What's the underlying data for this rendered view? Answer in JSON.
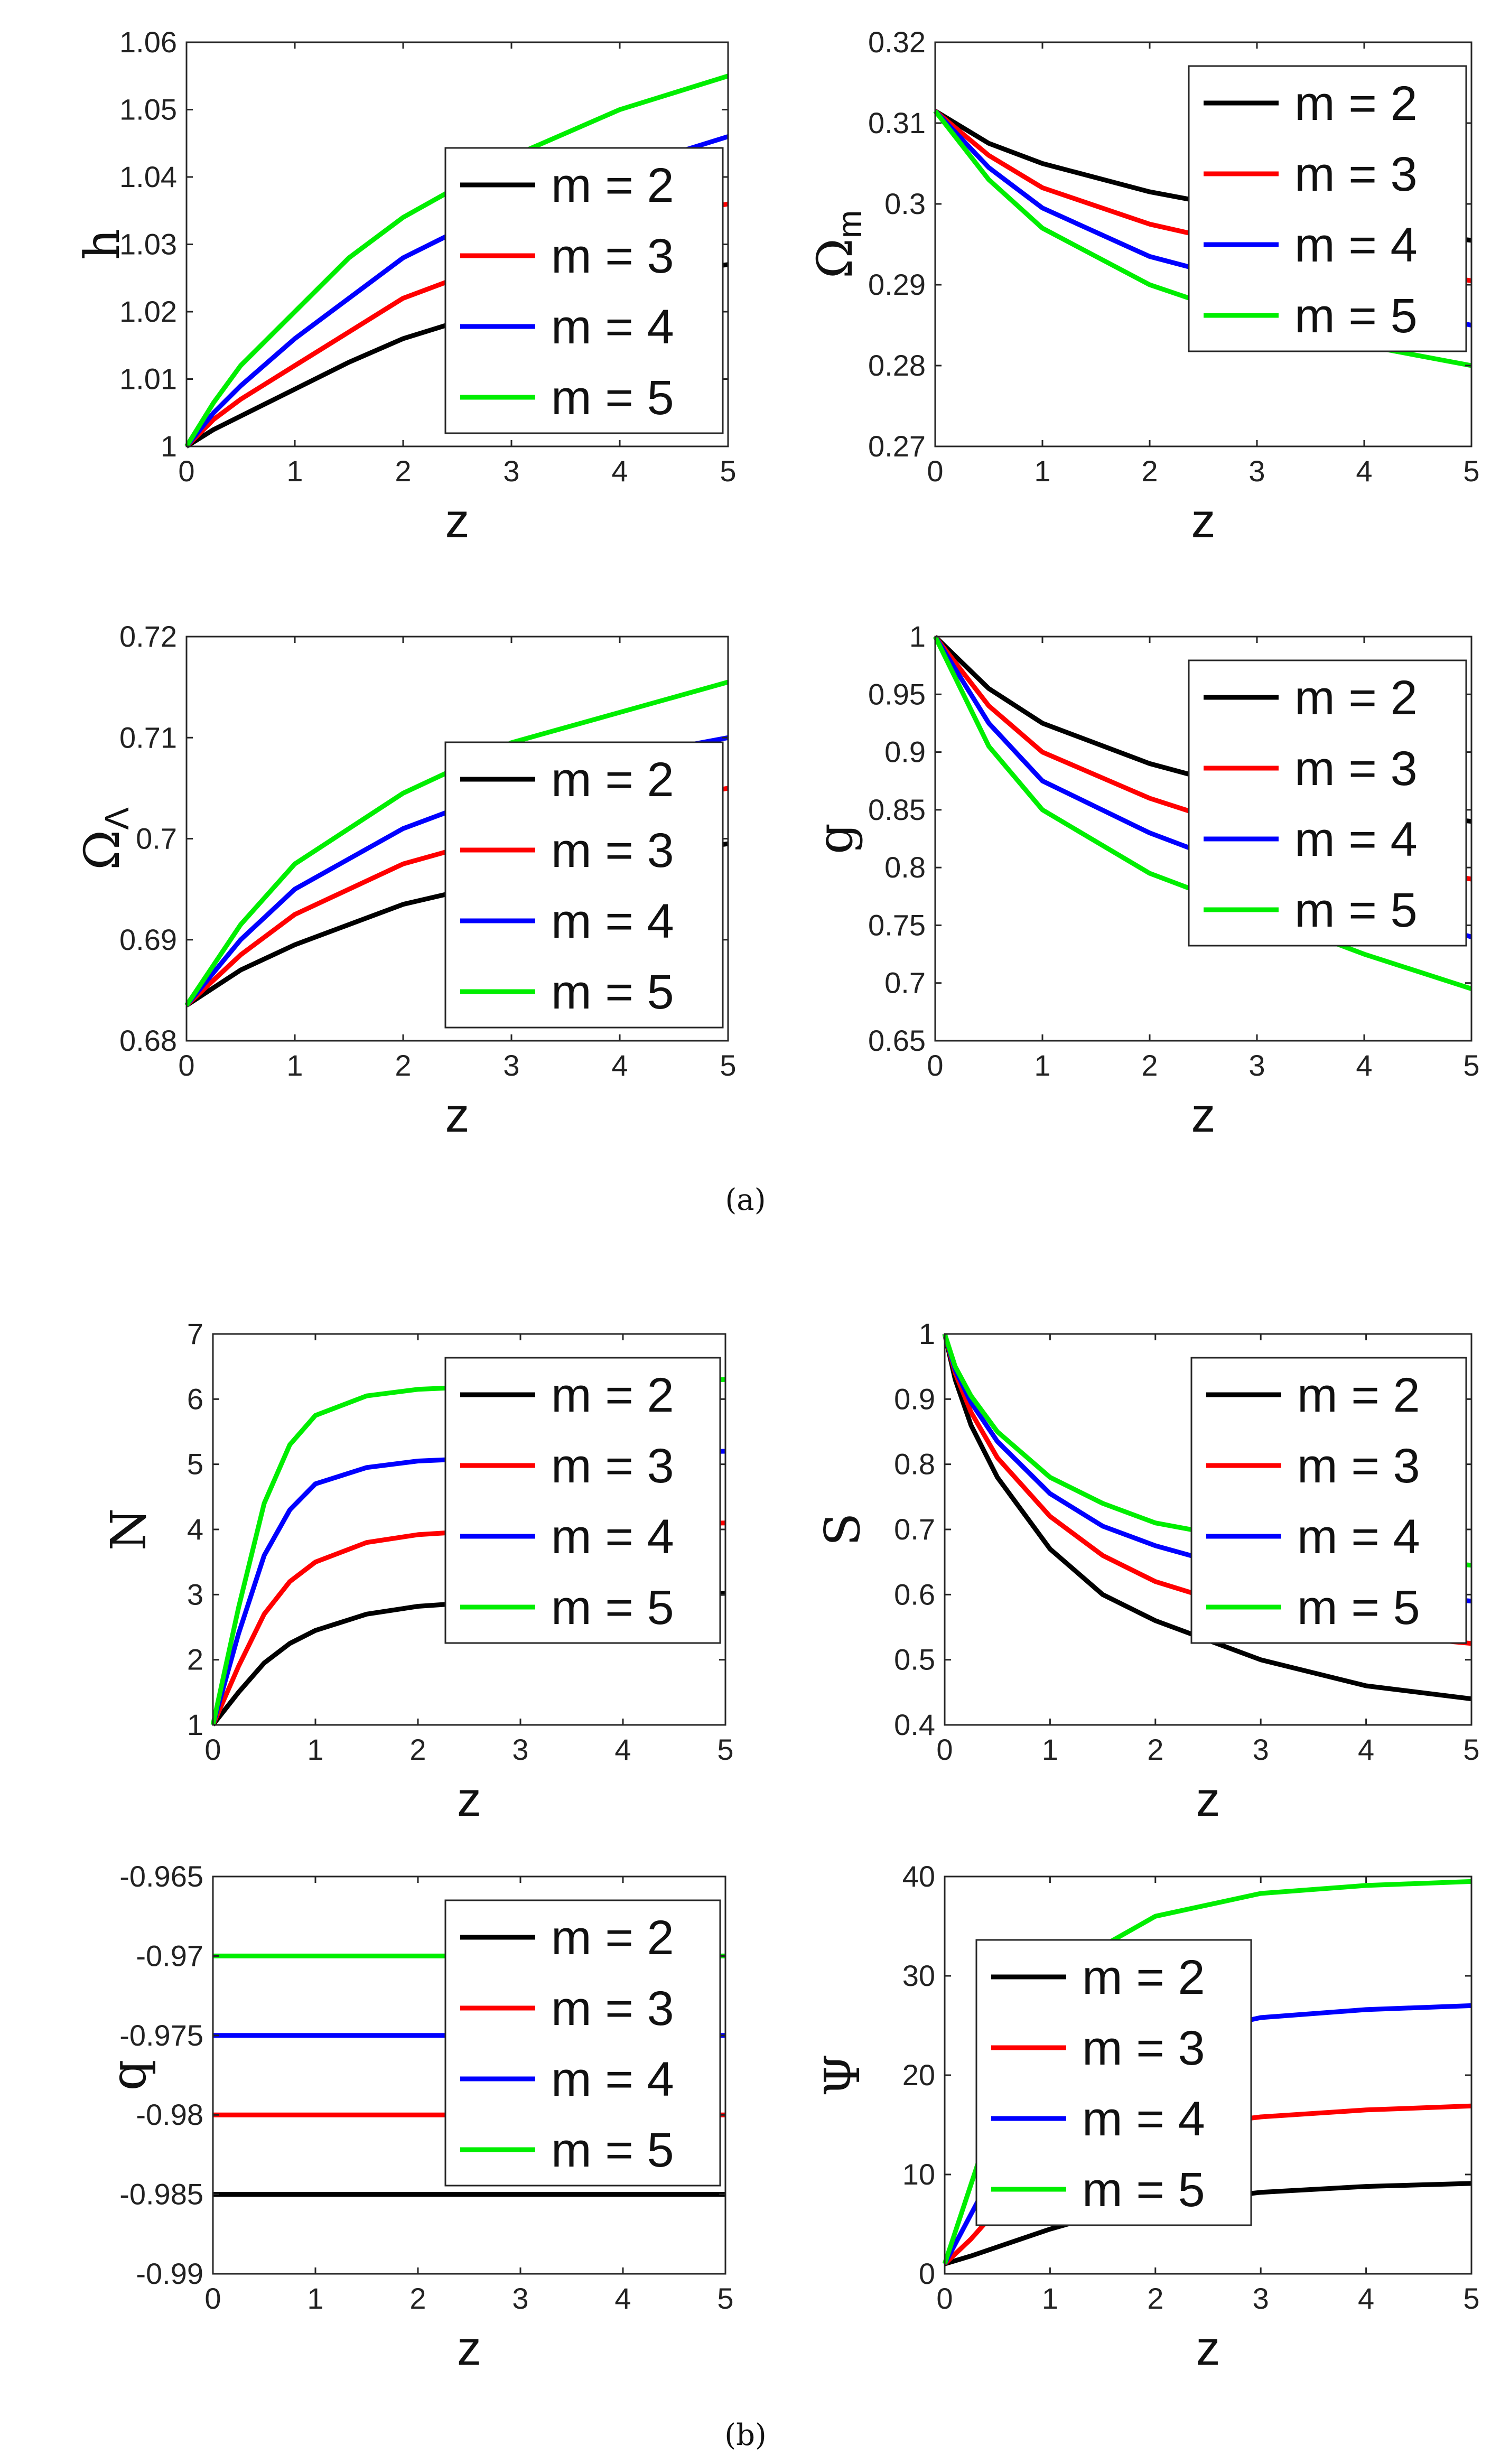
{
  "figure": {
    "captions": [
      "(a)",
      "(b)"
    ]
  },
  "chart_data": [
    {
      "id": "h",
      "type": "line",
      "ylabel": "h",
      "xlabel": "z",
      "xlim": [
        0,
        5
      ],
      "ylim": [
        1,
        1.06
      ],
      "xticks": [
        "0",
        "1",
        "2",
        "3",
        "4",
        "5"
      ],
      "yticks": [
        "1",
        "1.01",
        "1.02",
        "1.03",
        "1.04",
        "1.05",
        "1.06"
      ],
      "legend": "upper-right",
      "series": [
        {
          "name": "m = 2",
          "color": "#000000",
          "x": [
            0,
            0.25,
            0.5,
            1,
            1.5,
            2,
            3,
            4,
            5
          ],
          "y": [
            1,
            1.0025,
            1.0045,
            1.0085,
            1.0125,
            1.016,
            1.021,
            1.025,
            1.027
          ]
        },
        {
          "name": "m = 3",
          "color": "#ff0000",
          "x": [
            0,
            0.25,
            0.5,
            1,
            1.5,
            2,
            3,
            4,
            5
          ],
          "y": [
            1,
            1.004,
            1.007,
            1.012,
            1.017,
            1.022,
            1.028,
            1.033,
            1.036
          ]
        },
        {
          "name": "m = 4",
          "color": "#0000ff",
          "x": [
            0,
            0.25,
            0.5,
            1,
            1.5,
            2,
            3,
            4,
            5
          ],
          "y": [
            1,
            1.005,
            1.009,
            1.016,
            1.022,
            1.028,
            1.036,
            1.041,
            1.046
          ]
        },
        {
          "name": "m = 5",
          "color": "#00ee00",
          "x": [
            0,
            0.25,
            0.5,
            1,
            1.5,
            2,
            3,
            4,
            5
          ],
          "y": [
            1,
            1.0065,
            1.012,
            1.02,
            1.028,
            1.034,
            1.043,
            1.05,
            1.055
          ]
        }
      ]
    },
    {
      "id": "omega_m",
      "type": "line",
      "ylabel": "Ωm",
      "xlabel": "z",
      "xlim": [
        0,
        5
      ],
      "ylim": [
        0.27,
        0.32
      ],
      "xticks": [
        "0",
        "1",
        "2",
        "3",
        "4",
        "5"
      ],
      "yticks": [
        "0.27",
        "0.28",
        "0.29",
        "0.3",
        "0.31",
        "0.32"
      ],
      "legend": "upper-right",
      "series": [
        {
          "name": "m = 2",
          "color": "#000000",
          "x": [
            0,
            0.5,
            1,
            2,
            3,
            4,
            5
          ],
          "y": [
            0.3115,
            0.3075,
            0.305,
            0.3015,
            0.299,
            0.297,
            0.2955
          ]
        },
        {
          "name": "m = 3",
          "color": "#ff0000",
          "x": [
            0,
            0.5,
            1,
            2,
            3,
            4,
            5
          ],
          "y": [
            0.3115,
            0.306,
            0.302,
            0.2975,
            0.2945,
            0.2925,
            0.2905
          ]
        },
        {
          "name": "m = 4",
          "color": "#0000ff",
          "x": [
            0,
            0.5,
            1,
            2,
            3,
            4,
            5
          ],
          "y": [
            0.3115,
            0.3045,
            0.2995,
            0.2935,
            0.29,
            0.2875,
            0.285
          ]
        },
        {
          "name": "m = 5",
          "color": "#00ee00",
          "x": [
            0,
            0.5,
            1,
            2,
            3,
            4,
            5
          ],
          "y": [
            0.3115,
            0.303,
            0.297,
            0.29,
            0.2855,
            0.2825,
            0.28
          ]
        }
      ]
    },
    {
      "id": "omega_lambda",
      "type": "line",
      "ylabel": "ΩΛ",
      "xlabel": "z",
      "xlim": [
        0,
        5
      ],
      "ylim": [
        0.68,
        0.72
      ],
      "xticks": [
        "0",
        "1",
        "2",
        "3",
        "4",
        "5"
      ],
      "yticks": [
        "0.68",
        "0.69",
        "0.7",
        "0.71",
        "0.72"
      ],
      "legend": "upper-right",
      "series": [
        {
          "name": "m = 2",
          "color": "#000000",
          "x": [
            0,
            0.5,
            1,
            2,
            3,
            4,
            5
          ],
          "y": [
            0.6835,
            0.687,
            0.6895,
            0.6935,
            0.696,
            0.698,
            0.6995
          ]
        },
        {
          "name": "m = 3",
          "color": "#ff0000",
          "x": [
            0,
            0.5,
            1,
            2,
            3,
            4,
            5
          ],
          "y": [
            0.6835,
            0.6885,
            0.6925,
            0.6975,
            0.7005,
            0.703,
            0.705
          ]
        },
        {
          "name": "m = 4",
          "color": "#0000ff",
          "x": [
            0,
            0.5,
            1,
            2,
            3,
            4,
            5
          ],
          "y": [
            0.6835,
            0.69,
            0.695,
            0.701,
            0.705,
            0.708,
            0.71
          ]
        },
        {
          "name": "m = 5",
          "color": "#00ee00",
          "x": [
            0,
            0.5,
            1,
            2,
            3,
            4,
            5
          ],
          "y": [
            0.6835,
            0.6915,
            0.6975,
            0.7045,
            0.7095,
            0.7125,
            0.7155
          ]
        }
      ]
    },
    {
      "id": "g",
      "type": "line",
      "ylabel": "g",
      "xlabel": "z",
      "xlim": [
        0,
        5
      ],
      "ylim": [
        0.65,
        1
      ],
      "xticks": [
        "0",
        "1",
        "2",
        "3",
        "4",
        "5"
      ],
      "yticks": [
        "0.65",
        "0.7",
        "0.75",
        "0.8",
        "0.85",
        "0.9",
        "0.95",
        "1"
      ],
      "legend": "upper-right",
      "series": [
        {
          "name": "m = 2",
          "color": "#000000",
          "x": [
            0,
            0.5,
            1,
            2,
            3,
            4,
            5
          ],
          "y": [
            1,
            0.955,
            0.925,
            0.89,
            0.865,
            0.85,
            0.84
          ]
        },
        {
          "name": "m = 3",
          "color": "#ff0000",
          "x": [
            0,
            0.5,
            1,
            2,
            3,
            4,
            5
          ],
          "y": [
            1,
            0.94,
            0.9,
            0.86,
            0.83,
            0.805,
            0.79
          ]
        },
        {
          "name": "m = 4",
          "color": "#0000ff",
          "x": [
            0,
            0.5,
            1,
            2,
            3,
            4,
            5
          ],
          "y": [
            1,
            0.925,
            0.875,
            0.83,
            0.795,
            0.765,
            0.74
          ]
        },
        {
          "name": "m = 5",
          "color": "#00ee00",
          "x": [
            0,
            0.5,
            1,
            2,
            3,
            4,
            5
          ],
          "y": [
            1,
            0.905,
            0.85,
            0.795,
            0.76,
            0.725,
            0.695
          ]
        }
      ]
    },
    {
      "id": "N",
      "type": "line",
      "ylabel": "N",
      "xlabel": "z",
      "xlim": [
        0,
        5
      ],
      "ylim": [
        1,
        7
      ],
      "xticks": [
        "0",
        "1",
        "2",
        "3",
        "4",
        "5"
      ],
      "yticks": [
        "1",
        "2",
        "3",
        "4",
        "5",
        "6",
        "7"
      ],
      "legend": "upper-right",
      "series": [
        {
          "name": "m = 2",
          "color": "#000000",
          "x": [
            0,
            0.25,
            0.5,
            0.75,
            1,
            1.5,
            2,
            3,
            4,
            5
          ],
          "y": [
            1,
            1.5,
            1.95,
            2.25,
            2.45,
            2.7,
            2.82,
            2.93,
            2.98,
            3.02
          ]
        },
        {
          "name": "m = 3",
          "color": "#ff0000",
          "x": [
            0,
            0.25,
            0.5,
            0.75,
            1,
            1.5,
            2,
            3,
            4,
            5
          ],
          "y": [
            1,
            1.9,
            2.7,
            3.2,
            3.5,
            3.8,
            3.92,
            4.02,
            4.07,
            4.1
          ]
        },
        {
          "name": "m = 4",
          "color": "#0000ff",
          "x": [
            0,
            0.25,
            0.5,
            0.75,
            1,
            1.5,
            2,
            3,
            4,
            5
          ],
          "y": [
            1,
            2.4,
            3.6,
            4.3,
            4.7,
            4.95,
            5.05,
            5.12,
            5.17,
            5.2
          ]
        },
        {
          "name": "m = 5",
          "color": "#00ee00",
          "x": [
            0,
            0.25,
            0.5,
            0.75,
            1,
            1.5,
            2,
            3,
            4,
            5
          ],
          "y": [
            1,
            2.8,
            4.4,
            5.3,
            5.75,
            6.05,
            6.15,
            6.22,
            6.26,
            6.3
          ]
        }
      ]
    },
    {
      "id": "S",
      "type": "line",
      "ylabel": "S",
      "xlabel": "z",
      "xlim": [
        0,
        5
      ],
      "ylim": [
        0.4,
        1
      ],
      "xticks": [
        "0",
        "1",
        "2",
        "3",
        "4",
        "5"
      ],
      "yticks": [
        "0.4",
        "0.5",
        "0.6",
        "0.7",
        "0.8",
        "0.9",
        "1"
      ],
      "legend": "upper-right",
      "series": [
        {
          "name": "m = 2",
          "color": "#000000",
          "x": [
            0,
            0.1,
            0.25,
            0.5,
            1,
            1.5,
            2,
            3,
            4,
            5
          ],
          "y": [
            1,
            0.93,
            0.86,
            0.78,
            0.67,
            0.6,
            0.56,
            0.5,
            0.46,
            0.44
          ]
        },
        {
          "name": "m = 3",
          "color": "#ff0000",
          "x": [
            0,
            0.1,
            0.25,
            0.5,
            1,
            1.5,
            2,
            3,
            4,
            5
          ],
          "y": [
            1,
            0.94,
            0.88,
            0.81,
            0.72,
            0.66,
            0.62,
            0.57,
            0.54,
            0.525
          ]
        },
        {
          "name": "m = 4",
          "color": "#0000ff",
          "x": [
            0,
            0.1,
            0.25,
            0.5,
            1,
            1.5,
            2,
            3,
            4,
            5
          ],
          "y": [
            1,
            0.945,
            0.895,
            0.835,
            0.755,
            0.705,
            0.675,
            0.63,
            0.605,
            0.59
          ]
        },
        {
          "name": "m = 5",
          "color": "#00ee00",
          "x": [
            0,
            0.1,
            0.25,
            0.5,
            1,
            1.5,
            2,
            3,
            4,
            5
          ],
          "y": [
            1,
            0.95,
            0.905,
            0.85,
            0.78,
            0.74,
            0.71,
            0.68,
            0.66,
            0.645
          ]
        }
      ]
    },
    {
      "id": "q",
      "type": "line",
      "ylabel": "q",
      "xlabel": "z",
      "xlim": [
        0,
        5
      ],
      "ylim": [
        -0.99,
        -0.965
      ],
      "xticks": [
        "0",
        "1",
        "2",
        "3",
        "4",
        "5"
      ],
      "yticks": [
        "-0.99",
        "-0.985",
        "-0.98",
        "-0.975",
        "-0.97",
        "-0.965"
      ],
      "legend": "upper-right",
      "series": [
        {
          "name": "m = 2",
          "color": "#000000",
          "x": [
            0,
            5
          ],
          "y": [
            -0.985,
            -0.985
          ]
        },
        {
          "name": "m = 3",
          "color": "#ff0000",
          "x": [
            0,
            5
          ],
          "y": [
            -0.98,
            -0.98
          ]
        },
        {
          "name": "m = 4",
          "color": "#0000ff",
          "x": [
            0,
            5
          ],
          "y": [
            -0.975,
            -0.975
          ]
        },
        {
          "name": "m = 5",
          "color": "#00ee00",
          "x": [
            0,
            5
          ],
          "y": [
            -0.97,
            -0.97
          ]
        }
      ]
    },
    {
      "id": "psi",
      "type": "line",
      "ylabel": "Ψ",
      "xlabel": "z",
      "xlim": [
        0,
        5
      ],
      "ylim": [
        0,
        40
      ],
      "xticks": [
        "0",
        "1",
        "2",
        "3",
        "4",
        "5"
      ],
      "yticks": [
        "0",
        "10",
        "20",
        "30",
        "40"
      ],
      "legend": "upper-left",
      "series": [
        {
          "name": "m = 2",
          "color": "#000000",
          "x": [
            0,
            0.25,
            0.5,
            1,
            1.5,
            2,
            3,
            4,
            5
          ],
          "y": [
            1,
            1.8,
            2.7,
            4.5,
            6,
            7,
            8.2,
            8.8,
            9.1
          ]
        },
        {
          "name": "m = 3",
          "color": "#ff0000",
          "x": [
            0,
            0.25,
            0.5,
            1,
            1.5,
            2,
            3,
            4,
            5
          ],
          "y": [
            1,
            3.5,
            6.5,
            10.5,
            13,
            14.5,
            15.8,
            16.5,
            16.9
          ]
        },
        {
          "name": "m = 4",
          "color": "#0000ff",
          "x": [
            0,
            0.25,
            0.5,
            1,
            1.5,
            2,
            3,
            4,
            5
          ],
          "y": [
            1,
            6,
            11,
            17,
            21,
            23.5,
            25.8,
            26.6,
            27
          ]
        },
        {
          "name": "m = 5",
          "color": "#00ee00",
          "x": [
            0,
            0.25,
            0.5,
            1,
            1.5,
            2,
            3,
            4,
            5
          ],
          "y": [
            1,
            9,
            17,
            27,
            33,
            36,
            38.3,
            39.1,
            39.5
          ]
        }
      ]
    }
  ]
}
